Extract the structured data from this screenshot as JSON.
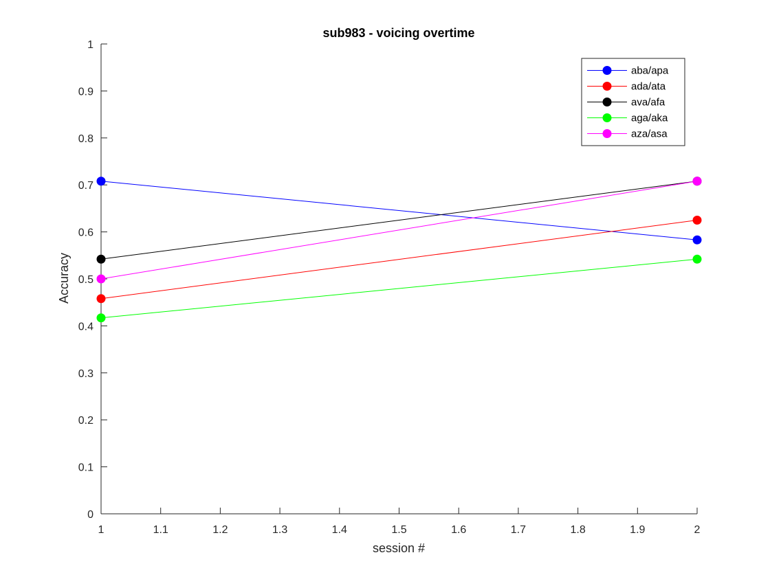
{
  "chart_data": {
    "type": "line",
    "title": "sub983 - voicing overtime",
    "xlabel": "session #",
    "ylabel": "Accuracy",
    "xlim": [
      1,
      2
    ],
    "ylim": [
      0,
      1
    ],
    "xticks": [
      "1",
      "1.1",
      "1.2",
      "1.3",
      "1.4",
      "1.5",
      "1.6",
      "1.7",
      "1.8",
      "1.9",
      "2"
    ],
    "yticks": [
      "0",
      "0.1",
      "0.2",
      "0.3",
      "0.4",
      "0.5",
      "0.6",
      "0.7",
      "0.8",
      "0.9",
      "1"
    ],
    "x": [
      1,
      2
    ],
    "grid": false,
    "legend_position": "top-right",
    "series": [
      {
        "name": "aba/apa",
        "color": "#0000ff",
        "values": [
          0.708,
          0.583
        ]
      },
      {
        "name": "ada/ata",
        "color": "#ff0000",
        "values": [
          0.458,
          0.625
        ]
      },
      {
        "name": "ava/afa",
        "color": "#000000",
        "values": [
          0.542,
          0.708
        ]
      },
      {
        "name": "aga/aka",
        "color": "#00ff00",
        "values": [
          0.417,
          0.542
        ]
      },
      {
        "name": "aza/asa",
        "color": "#ff00ff",
        "values": [
          0.5,
          0.708
        ]
      }
    ]
  }
}
